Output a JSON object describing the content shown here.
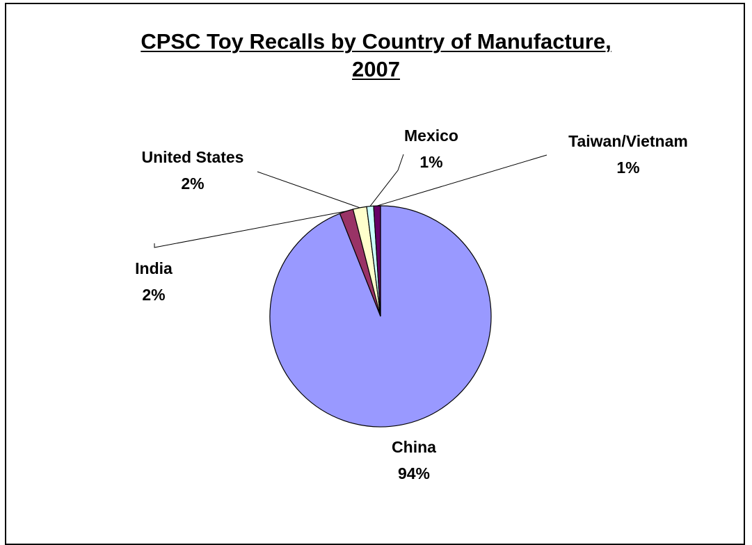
{
  "chart_data": {
    "type": "pie",
    "title": "CPSC Toy Recalls by Country of Manufacture,",
    "title_line2": "2007",
    "slices": [
      {
        "name": "China",
        "label": "94%",
        "value": 94,
        "color": "#9999FF"
      },
      {
        "name": "India",
        "label": "2%",
        "value": 2,
        "color": "#993366"
      },
      {
        "name": "United States",
        "label": "2%",
        "value": 2,
        "color": "#FFFFCC"
      },
      {
        "name": "Mexico",
        "label": "1%",
        "value": 1,
        "color": "#CCFFFF"
      },
      {
        "name": "Taiwan/Vietnam",
        "label": "1%",
        "value": 1,
        "color": "#660066"
      }
    ],
    "start_angle_deg": 0,
    "direction": "clockwise",
    "legend": "none",
    "grid": false
  }
}
